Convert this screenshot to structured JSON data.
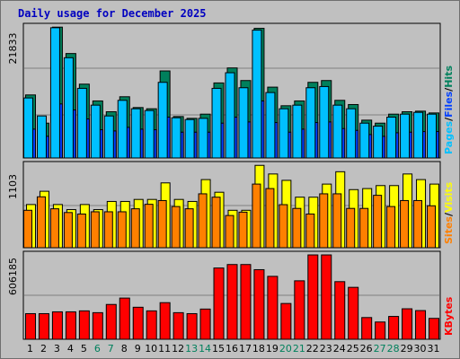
{
  "colors": {
    "background": "#c0c0c0",
    "plot_bg": "#c0c0c0",
    "title": "#0000c0",
    "hits": "#00805c",
    "files": "#0040ff",
    "pages": "#00c0ff",
    "visits": "#ffff00",
    "sites": "#ff8000",
    "kbytes": "#ff0000",
    "weekend_label": "#00805c",
    "weekday_label": "#000000"
  },
  "chart_data": {
    "title": "Daily usage for December 2025",
    "days": [
      "1",
      "2",
      "3",
      "4",
      "5",
      "6",
      "7",
      "8",
      "9",
      "10",
      "11",
      "12",
      "13",
      "14",
      "15",
      "16",
      "17",
      "18",
      "19",
      "20",
      "21",
      "22",
      "23",
      "24",
      "25",
      "26",
      "27",
      "28",
      "29",
      "30",
      "31"
    ],
    "weekend_days": [
      "6",
      "7",
      "13",
      "14",
      "20",
      "21",
      "27",
      "28"
    ],
    "panels": [
      {
        "type": "bar",
        "ymax_label": "21833",
        "ymax": 21833,
        "legend": [
          {
            "text": "Pages",
            "color": "#00c0ff"
          },
          {
            "text": "Files",
            "color": "#0040ff"
          },
          {
            "text": "Hits",
            "color": "#00805c"
          }
        ],
        "series": [
          {
            "name": "Hits",
            "color": "#00805c",
            "values": [
              10500,
              5800,
              21800,
              17400,
              12300,
              9500,
              7700,
              10200,
              8400,
              8200,
              14500,
              6900,
              6600,
              7300,
              12500,
              15000,
              12900,
              21600,
              11800,
              8700,
              9500,
              12600,
              12900,
              9600,
              8900,
              6300,
              5800,
              7300,
              7700,
              7800,
              7500
            ]
          },
          {
            "name": "Files",
            "color": "#0040ff",
            "values": [
              4800,
              3600,
              9000,
              8000,
              6500,
              4700,
              4500,
              5100,
              4800,
              4700,
              6800,
              4300,
              4300,
              4300,
              5800,
              6800,
              6000,
              9500,
              5900,
              4300,
              4800,
              5900,
              6000,
              4900,
              4600,
              3900,
              3600,
              4200,
              4300,
              4400,
              4400
            ]
          },
          {
            "name": "Pages",
            "color": "#00c0ff",
            "values": [
              10000,
              7000,
              21700,
              16700,
              11600,
              8800,
              7000,
              9600,
              8200,
              7900,
              12600,
              6700,
              6400,
              6600,
              11600,
              14200,
              11700,
              21300,
              10900,
              8200,
              8800,
              11700,
              11900,
              8800,
              8200,
              5800,
              5300,
              6800,
              7300,
              7600,
              7300
            ]
          }
        ]
      },
      {
        "type": "bar",
        "ymax_label": "1103",
        "ymax": 1103,
        "legend": [
          {
            "text": "Sites",
            "color": "#ff8000"
          },
          {
            "text": "Visits",
            "color": "#ffff00"
          }
        ],
        "series": [
          {
            "name": "Visits",
            "color": "#ffff00",
            "values": [
              577,
              754,
              577,
              509,
              577,
              509,
              618,
              618,
              645,
              645,
              866,
              645,
              618,
              910,
              741,
              500,
              500,
              1100,
              985,
              900,
              675,
              675,
              850,
              1015,
              776,
              790,
              830,
              830,
              985,
              910,
              850
            ]
          },
          {
            "name": "Sites",
            "color": "#ff8000",
            "values": [
              500,
              680,
              520,
              470,
              450,
              480,
              480,
              480,
              520,
              580,
              630,
              550,
              520,
              720,
              675,
              430,
              475,
              850,
              790,
              575,
              525,
              450,
              720,
              720,
              525,
              525,
              700,
              550,
              630,
              630,
              560
            ]
          }
        ]
      },
      {
        "type": "bar",
        "ymax_label": "606185",
        "ymax": 606185,
        "legend": [
          {
            "text": "KBytes",
            "color": "#ff0000"
          }
        ],
        "series": [
          {
            "name": "KBytes",
            "color": "#ff0000",
            "values": [
              184000,
              184000,
              197000,
              197000,
              204000,
              191000,
              250000,
              296000,
              230000,
              204000,
              263000,
              191000,
              184000,
              217000,
              512000,
              537000,
              537000,
              500000,
              452000,
              257000,
              420000,
              606000,
              606000,
              414000,
              373000,
              156000,
              124000,
              164000,
              219000,
              206000,
              150000
            ]
          }
        ]
      }
    ]
  }
}
